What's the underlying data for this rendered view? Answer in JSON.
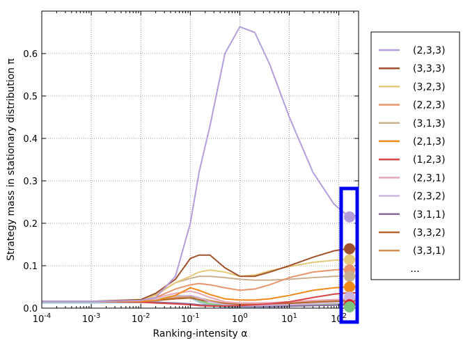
{
  "chart_data": {
    "type": "line",
    "xlabel": "Ranking-intensity α",
    "ylabel": "Strategy mass in stationary distribution π",
    "x_scale": "log",
    "xlim": [
      0.0001,
      250
    ],
    "ylim": [
      0,
      0.7
    ],
    "grid": true,
    "legend_position": "outside-right",
    "legend_more": "...",
    "x_ticks": [
      {
        "value": 0.0001,
        "base": "10",
        "exp": "-4"
      },
      {
        "value": 0.001,
        "base": "10",
        "exp": "-3"
      },
      {
        "value": 0.01,
        "base": "10",
        "exp": "-2"
      },
      {
        "value": 0.1,
        "base": "10",
        "exp": "-1"
      },
      {
        "value": 1,
        "base": "10",
        "exp": "0"
      },
      {
        "value": 10,
        "base": "10",
        "exp": "1"
      },
      {
        "value": 100,
        "base": "10",
        "exp": "2"
      }
    ],
    "y_ticks": [
      "0.0",
      "0.1",
      "0.2",
      "0.3",
      "0.4",
      "0.5",
      "0.6"
    ],
    "x": [
      0.0001,
      0.001,
      0.01,
      0.02,
      0.05,
      0.1,
      0.15,
      0.25,
      0.5,
      1,
      2,
      4,
      10,
      30,
      80,
      150,
      250
    ],
    "series": [
      {
        "name": "(2,3,3)",
        "color": "#b39ddb",
        "values": [
          0.016,
          0.016,
          0.018,
          0.025,
          0.075,
          0.2,
          0.32,
          0.43,
          0.6,
          0.663,
          0.65,
          0.575,
          0.45,
          0.32,
          0.245,
          0.218,
          0.218
        ]
      },
      {
        "name": "(3,3,3)",
        "color": "#a0522d",
        "values": [
          0.016,
          0.016,
          0.02,
          0.035,
          0.068,
          0.117,
          0.125,
          0.125,
          0.095,
          0.075,
          0.075,
          0.085,
          0.1,
          0.12,
          0.135,
          0.14,
          0.14
        ]
      },
      {
        "name": "(3,2,3)",
        "color": "#e6c87a",
        "values": [
          0.016,
          0.016,
          0.018,
          0.03,
          0.06,
          0.075,
          0.085,
          0.09,
          0.085,
          0.075,
          0.078,
          0.088,
          0.098,
          0.108,
          0.113,
          0.115,
          0.115
        ]
      },
      {
        "name": "(2,2,3)",
        "color": "#e8956d",
        "values": [
          0.016,
          0.016,
          0.018,
          0.025,
          0.045,
          0.055,
          0.058,
          0.055,
          0.048,
          0.042,
          0.045,
          0.055,
          0.072,
          0.085,
          0.09,
          0.092,
          0.092
        ]
      },
      {
        "name": "(3,1,3)",
        "color": "#c8b08e",
        "values": [
          0.016,
          0.016,
          0.02,
          0.032,
          0.06,
          0.07,
          0.075,
          0.075,
          0.072,
          0.068,
          0.066,
          0.066,
          0.068,
          0.072,
          0.075,
          0.076,
          0.076
        ]
      },
      {
        "name": "(2,1,3)",
        "color": "#f28a1a",
        "values": [
          0.016,
          0.016,
          0.016,
          0.018,
          0.03,
          0.048,
          0.042,
          0.032,
          0.022,
          0.019,
          0.019,
          0.022,
          0.03,
          0.042,
          0.048,
          0.05,
          0.05
        ]
      },
      {
        "name": "(1,2,3)",
        "color": "#d94545",
        "values": [
          0.016,
          0.016,
          0.014,
          0.012,
          0.01,
          0.008,
          0.006,
          0.005,
          0.005,
          0.006,
          0.008,
          0.01,
          0.015,
          0.025,
          0.033,
          0.036,
          0.036
        ]
      },
      {
        "name": "(2,3,1)",
        "color": "#e8a5b8",
        "values": [
          0.016,
          0.016,
          0.018,
          0.024,
          0.035,
          0.04,
          0.035,
          0.025,
          0.015,
          0.012,
          0.012,
          0.013,
          0.015,
          0.018,
          0.02,
          0.021,
          0.021
        ]
      },
      {
        "name": "(2,3,2)",
        "color": "#cdb5dd",
        "values": [
          0.016,
          0.016,
          0.017,
          0.02,
          0.028,
          0.03,
          0.025,
          0.015,
          0.008,
          0.006,
          0.006,
          0.007,
          0.008,
          0.01,
          0.012,
          0.013,
          0.013
        ]
      },
      {
        "name": "(3,1,1)",
        "color": "#8b6a9e",
        "values": [
          0.016,
          0.016,
          0.015,
          0.014,
          0.012,
          0.01,
          0.008,
          0.006,
          0.005,
          0.004,
          0.004,
          0.004,
          0.005,
          0.006,
          0.007,
          0.008,
          0.008
        ]
      },
      {
        "name": "(3,3,2)",
        "color": "#b5662e",
        "values": [
          0.016,
          0.016,
          0.016,
          0.018,
          0.022,
          0.024,
          0.02,
          0.015,
          0.01,
          0.008,
          0.008,
          0.009,
          0.011,
          0.014,
          0.016,
          0.017,
          0.017
        ]
      },
      {
        "name": "(3,3,1)",
        "color": "#d69050",
        "values": [
          0.016,
          0.016,
          0.017,
          0.019,
          0.025,
          0.028,
          0.024,
          0.018,
          0.012,
          0.01,
          0.01,
          0.011,
          0.013,
          0.016,
          0.018,
          0.019,
          0.019
        ]
      }
    ],
    "extra_series_colors": [
      "#7cc47c",
      "#9bcf8a",
      "#a6c8e0"
    ],
    "markers": [
      {
        "value": 0.215,
        "color": "#b39ddb"
      },
      {
        "value": 0.14,
        "color": "#a0522d"
      },
      {
        "value": 0.114,
        "color": "#e6c87a"
      },
      {
        "value": 0.09,
        "color": "#e8956d"
      },
      {
        "value": 0.075,
        "color": "#c8b08e"
      },
      {
        "value": 0.05,
        "color": "#f28a1a"
      },
      {
        "value": 0.026,
        "color": "#cdb5dd"
      },
      {
        "value": 0.008,
        "color": "#d9252a"
      },
      {
        "value": 0.003,
        "color": "#7cc47c"
      }
    ],
    "highlight_box_color": "#0000ee"
  }
}
